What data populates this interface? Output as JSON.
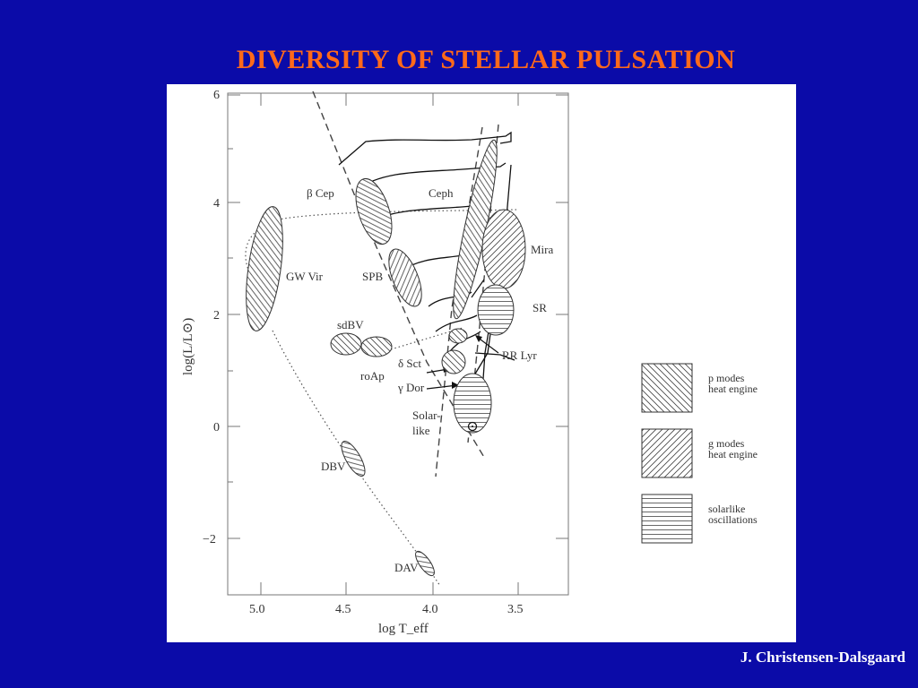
{
  "title": "DIVERSITY OF STELLAR PULSATION",
  "credit": "J. Christensen-Dalsgaard",
  "chart_data": {
    "type": "diagram",
    "x_axis": {
      "label": "log T_eff",
      "ticks": [
        "5.0",
        "4.5",
        "4.0",
        "3.5"
      ]
    },
    "y_axis": {
      "label": "log(L/L⊙)",
      "ticks": [
        "6",
        "4",
        "2",
        "0",
        "−2"
      ]
    },
    "labels": {
      "bcep": "β Cep",
      "ceph": "Ceph",
      "gwvir": "GW Vir",
      "spb": "SPB",
      "mira": "Mira",
      "sr": "SR",
      "sdbv": "sdBV",
      "rrlyr": "RR Lyr",
      "dsct": "δ Sct",
      "roap": "roAp",
      "gdor": "γ Dor",
      "solar1": "Solar-",
      "solar2": "like",
      "dbv": "DBV",
      "dav": "DAV"
    },
    "legend": [
      {
        "line1": "p modes",
        "line2": "heat engine",
        "hatch": "backslash"
      },
      {
        "line1": "g modes",
        "line2": "heat engine",
        "hatch": "slash"
      },
      {
        "line1": "solarlike",
        "line2": "oscillations",
        "hatch": "horizontal"
      }
    ]
  }
}
